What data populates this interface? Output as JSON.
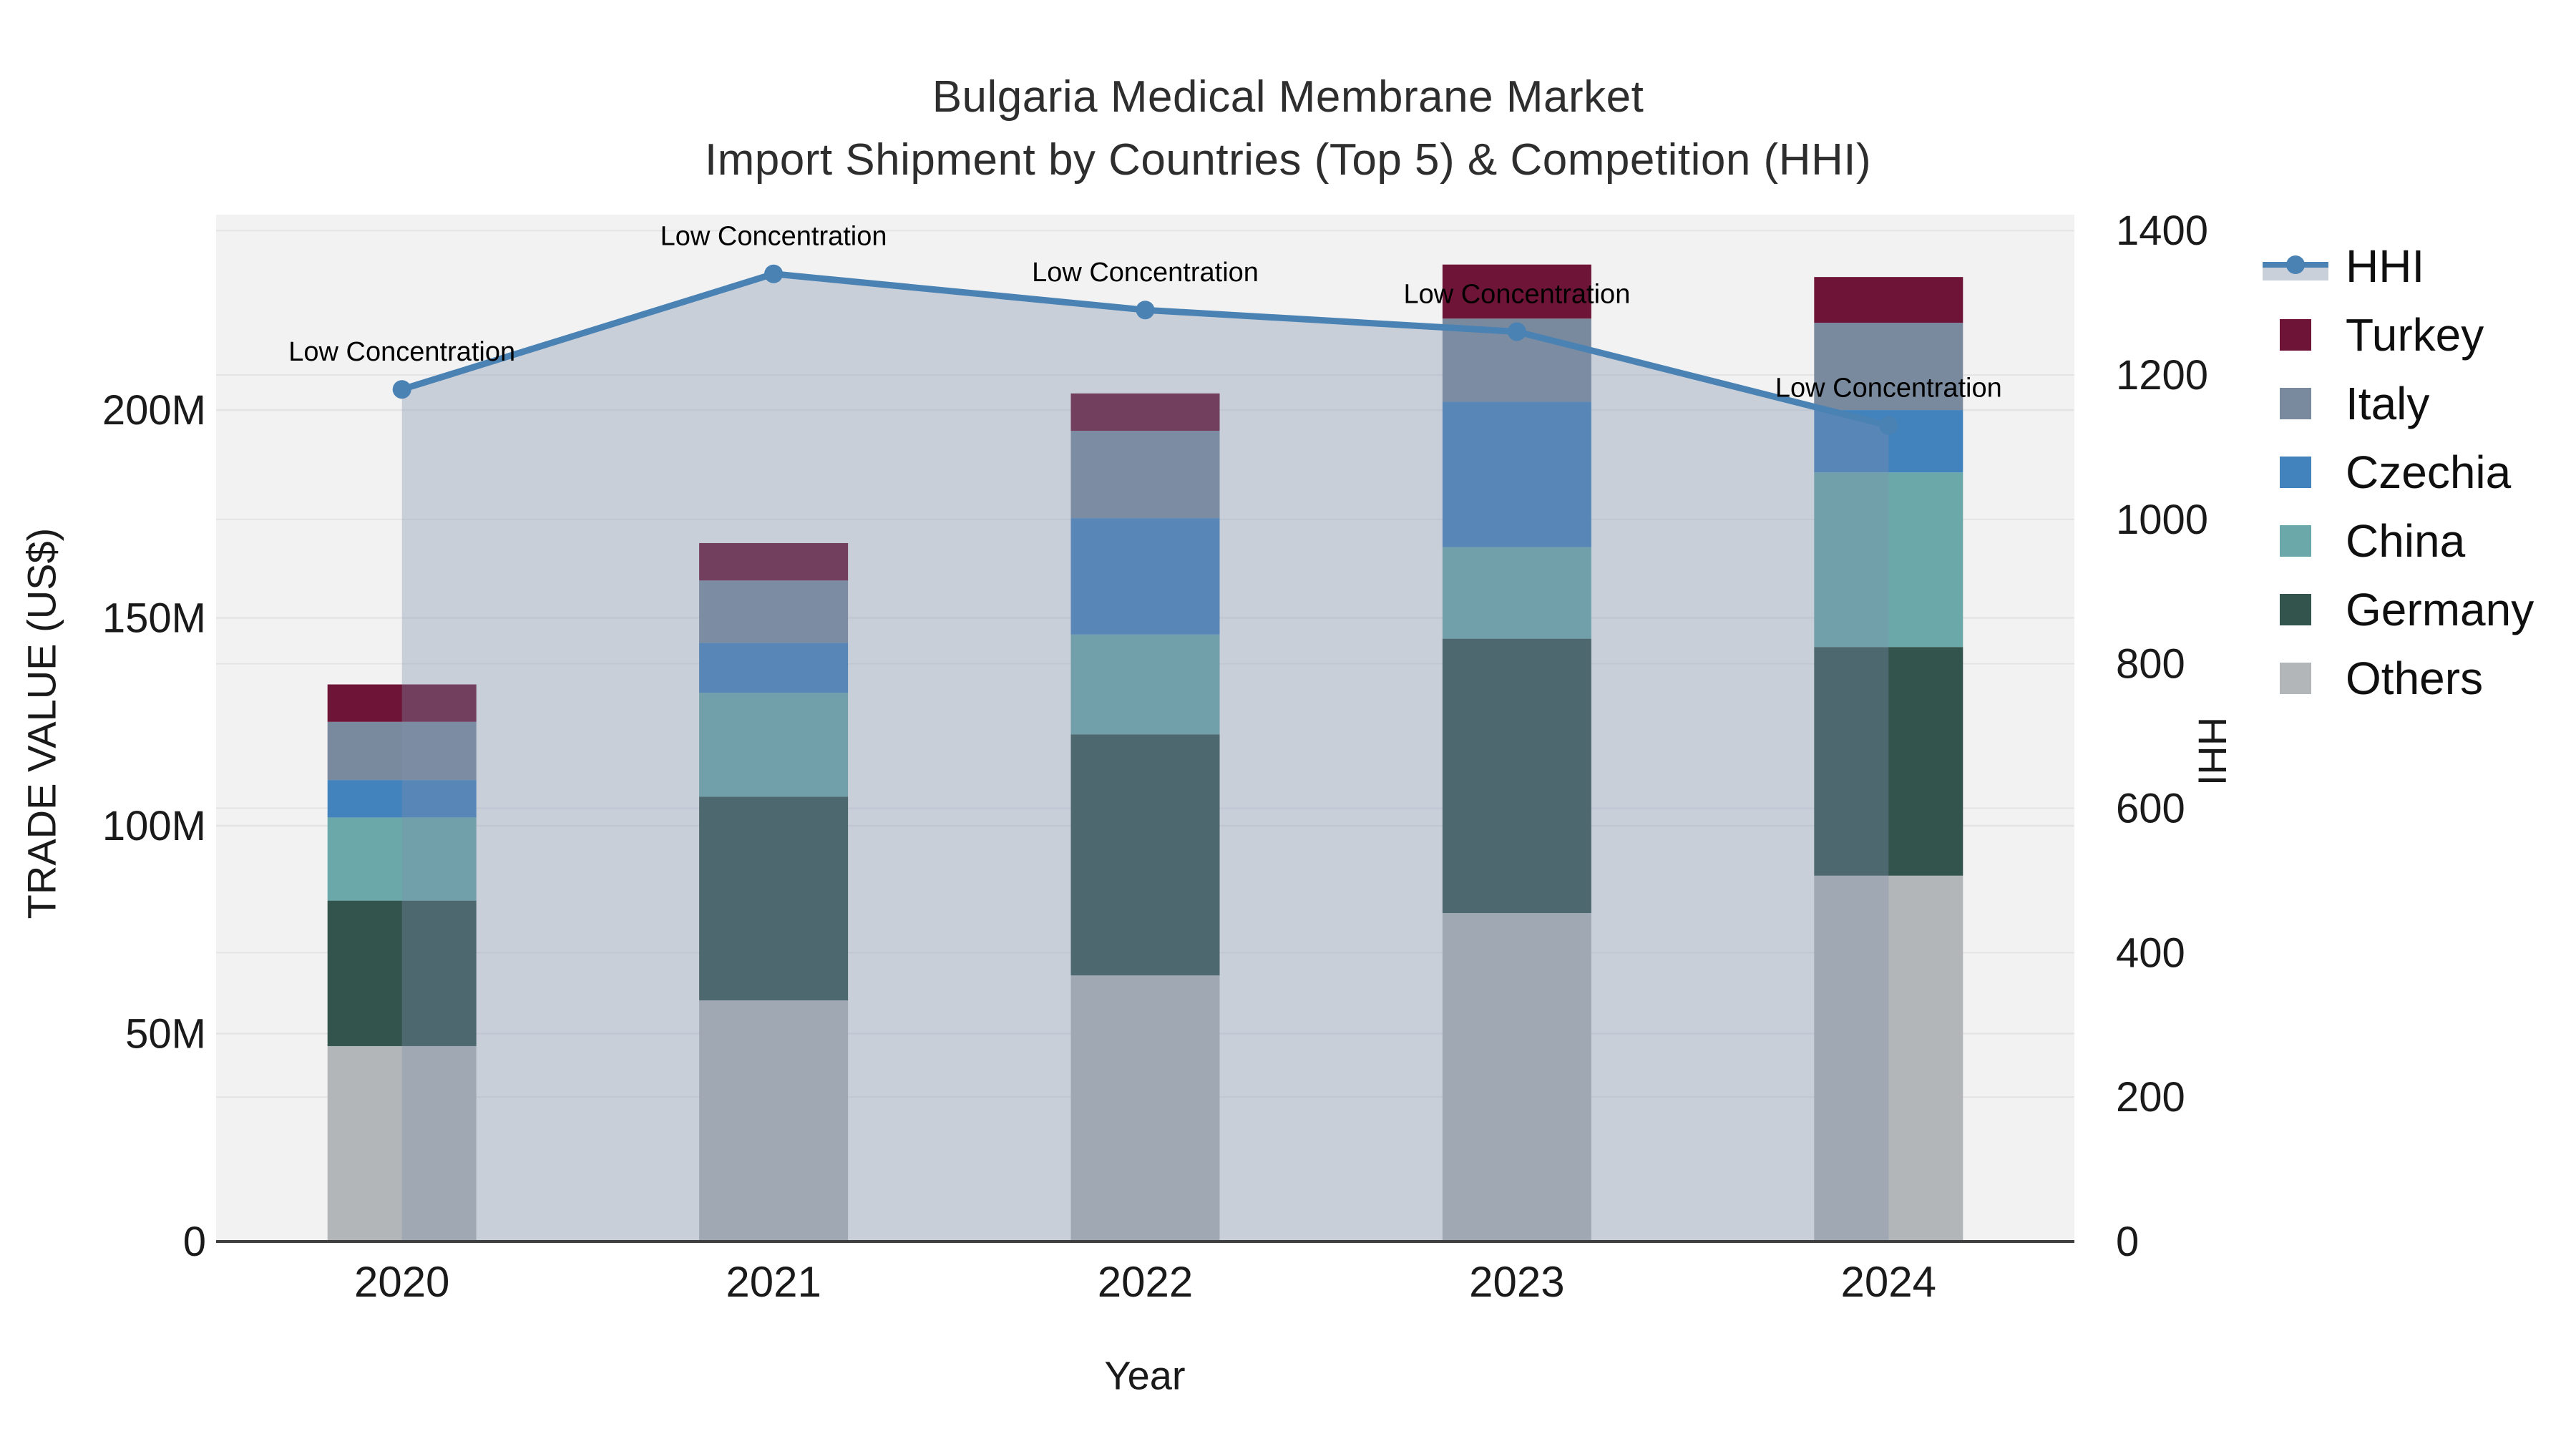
{
  "title": {
    "line1": "Bulgaria Medical Membrane Market",
    "line2": "Import Shipment by Countries (Top 5) & Competition (HHI)"
  },
  "axes": {
    "x_title": "Year",
    "y_left_title": "TRADE VALUE (US$)",
    "y_right_title": "HHI"
  },
  "chart_data": {
    "type": "bar+line",
    "categories": [
      "2020",
      "2021",
      "2022",
      "2023",
      "2024"
    ],
    "bar_value_unit": "trade value, millions of US$",
    "series": [
      {
        "name": "Others",
        "color": "#b3b6b9",
        "values": [
          47,
          58,
          64,
          79,
          88
        ]
      },
      {
        "name": "Germany",
        "color": "#33534d",
        "values": [
          35,
          49,
          58,
          66,
          55
        ]
      },
      {
        "name": "China",
        "color": "#6ba8a9",
        "values": [
          20,
          25,
          24,
          22,
          42
        ]
      },
      {
        "name": "Czechia",
        "color": "#4282bd",
        "values": [
          9,
          12,
          28,
          35,
          15
        ]
      },
      {
        "name": "Italy",
        "color": "#7a8a9e",
        "values": [
          14,
          15,
          21,
          20,
          21
        ]
      },
      {
        "name": "Turkey",
        "color": "#6e1537",
        "values": [
          9,
          9,
          9,
          13,
          11
        ]
      }
    ],
    "bar_totals": [
      134,
      168,
      204,
      235,
      232
    ],
    "line": {
      "name": "HHI",
      "values": [
        1180,
        1340,
        1290,
        1260,
        1130
      ],
      "color": "#4a82b4",
      "fill_color": "rgba(126,143,171,0.35)",
      "annotations": [
        "Low Concentration",
        "Low Concentration",
        "Low Concentration",
        "Low Concentration",
        "Low Concentration"
      ]
    },
    "y_left": {
      "max": 247,
      "ticks": [
        {
          "v": 0,
          "label": "0"
        },
        {
          "v": 50,
          "label": "50M"
        },
        {
          "v": 100,
          "label": "100M"
        },
        {
          "v": 150,
          "label": "150M"
        },
        {
          "v": 200,
          "label": "200M"
        }
      ]
    },
    "y_right": {
      "max": 1422,
      "ticks": [
        {
          "v": 0,
          "label": "0"
        },
        {
          "v": 200,
          "label": "200"
        },
        {
          "v": 400,
          "label": "400"
        },
        {
          "v": 600,
          "label": "600"
        },
        {
          "v": 800,
          "label": "800"
        },
        {
          "v": 1000,
          "label": "1000"
        },
        {
          "v": 1200,
          "label": "1200"
        },
        {
          "v": 1400,
          "label": "1400"
        }
      ]
    },
    "legend": [
      {
        "label": "HHI",
        "type": "line",
        "color": "#4a82b4",
        "band_color": "#c9d0da"
      },
      {
        "label": "Turkey",
        "type": "box",
        "color": "#6e1537"
      },
      {
        "label": "Italy",
        "type": "box",
        "color": "#7a8a9e"
      },
      {
        "label": "Czechia",
        "type": "box",
        "color": "#4282bd"
      },
      {
        "label": "China",
        "type": "box",
        "color": "#6ba8a9"
      },
      {
        "label": "Germany",
        "type": "box",
        "color": "#33534d"
      },
      {
        "label": "Others",
        "type": "box",
        "color": "#b3b6b9"
      }
    ],
    "style": {
      "plot_bg": "#f2f2f2",
      "gridline": "#e4e4e6",
      "axis_line": "#3f3f3f",
      "annotation_color": "#000000"
    }
  }
}
